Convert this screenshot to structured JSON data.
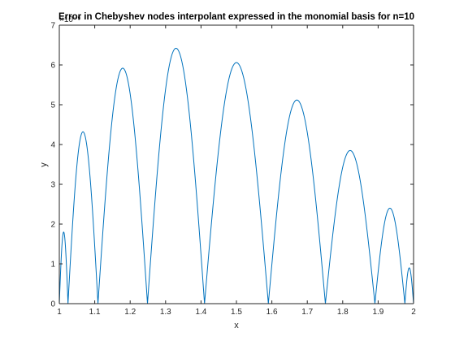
{
  "chart_data": {
    "type": "line",
    "title": "Error in Chebyshev nodes interpolant  expressed in the monomial basis for n=10",
    "xlabel": "x",
    "ylabel": "y",
    "y_exponent_label": "×10⁻⁹",
    "xlim": [
      1,
      2
    ],
    "ylim": [
      0,
      7
    ],
    "grid": false,
    "x_ticks": [
      "1",
      "1.1",
      "1.2",
      "1.3",
      "1.4",
      "1.5",
      "1.6",
      "1.7",
      "1.8",
      "1.9",
      "2"
    ],
    "y_ticks": [
      "0",
      "1",
      "2",
      "3",
      "4",
      "5",
      "6",
      "7"
    ],
    "line_color": "#0072bd",
    "zeros": [
      1.0,
      1.0245,
      1.1091,
      1.2489,
      1.4099,
      1.5901,
      1.7511,
      1.8909,
      1.9755,
      2.0
    ],
    "arches": [
      {
        "x_start": 1.0,
        "x_end": 1.0245,
        "peak": 1.8
      },
      {
        "x_start": 1.0245,
        "x_end": 1.1091,
        "peak": 4.32
      },
      {
        "x_start": 1.1091,
        "x_end": 1.2489,
        "peak": 5.92
      },
      {
        "x_start": 1.2489,
        "x_end": 1.4099,
        "peak": 6.42
      },
      {
        "x_start": 1.4099,
        "x_end": 1.5901,
        "peak": 6.06
      },
      {
        "x_start": 1.5901,
        "x_end": 1.7511,
        "peak": 5.12
      },
      {
        "x_start": 1.7511,
        "x_end": 1.8909,
        "peak": 3.85
      },
      {
        "x_start": 1.8909,
        "x_end": 1.9755,
        "peak": 2.4
      },
      {
        "x_start": 1.9755,
        "x_end": 2.0,
        "peak": 0.9
      }
    ]
  }
}
